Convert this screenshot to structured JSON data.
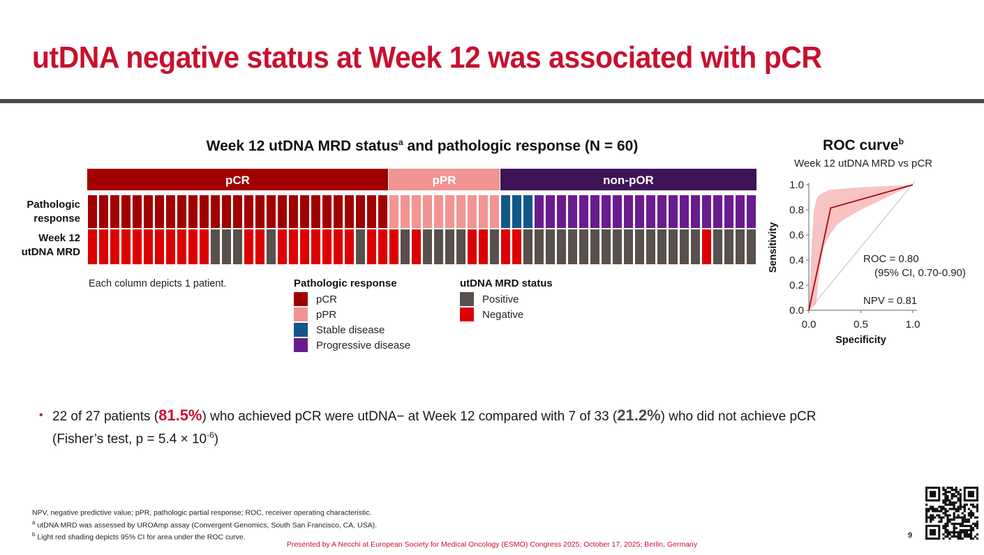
{
  "slide": {
    "title": "utDNA negative status at Week 12 was associated with pCR",
    "page_number": "9",
    "presenter": "Presented by A Necchi at European Society for Medical Oncology (ESMO) Congress 2025; October 17, 2025; Berlin, Germany"
  },
  "colors": {
    "accent": "#c8102e",
    "divider": "#4f4a48",
    "pCR": "#a00000",
    "pPR": "#f29492",
    "stable_disease": "#12578a",
    "progressive_disease": "#6a1b8e",
    "non_pOR_header": "#3f1457",
    "mrd_positive": "#57504c",
    "mrd_negative": "#dc0000",
    "roc_line": "#b0000f",
    "roc_ci": "#f6b9b9",
    "diagonal": "#cccccc"
  },
  "heatmap": {
    "title": "Week 12 utDNA MRD status",
    "title_sup": "a",
    "title_suffix": " and pathologic response (N = 60)",
    "row_labels": {
      "pathologic": [
        "Pathologic",
        "response"
      ],
      "mrd": [
        "Week 12",
        "utDNA MRD"
      ]
    },
    "groups": [
      {
        "label": "pCR",
        "count": 27,
        "color_key": "pCR"
      },
      {
        "label": "pPR",
        "count": 10,
        "color_key": "pPR"
      },
      {
        "label": "non-pOR",
        "count": 23,
        "color_key": "non_pOR_header"
      }
    ],
    "note": "Each column depicts 1 patient."
  },
  "chart_data": [
    {
      "type": "heatmap",
      "title": "Week 12 utDNA MRD status and pathologic response (N = 60)",
      "rows": [
        "Pathologic response",
        "Week 12 utDNA MRD"
      ],
      "columns": 60,
      "pathologic_response": [
        "pCR",
        "pCR",
        "pCR",
        "pCR",
        "pCR",
        "pCR",
        "pCR",
        "pCR",
        "pCR",
        "pCR",
        "pCR",
        "pCR",
        "pCR",
        "pCR",
        "pCR",
        "pCR",
        "pCR",
        "pCR",
        "pCR",
        "pCR",
        "pCR",
        "pCR",
        "pCR",
        "pCR",
        "pCR",
        "pCR",
        "pCR",
        "pPR",
        "pPR",
        "pPR",
        "pPR",
        "pPR",
        "pPR",
        "pPR",
        "pPR",
        "pPR",
        "pPR",
        "SD",
        "SD",
        "SD",
        "PD",
        "PD",
        "PD",
        "PD",
        "PD",
        "PD",
        "PD",
        "PD",
        "PD",
        "PD",
        "PD",
        "PD",
        "PD",
        "PD",
        "PD",
        "PD",
        "PD",
        "PD",
        "PD",
        "PD"
      ],
      "mrd_status": [
        "N",
        "N",
        "N",
        "N",
        "N",
        "N",
        "N",
        "N",
        "N",
        "N",
        "N",
        "P",
        "P",
        "P",
        "N",
        "N",
        "P",
        "N",
        "N",
        "N",
        "N",
        "N",
        "N",
        "N",
        "P",
        "N",
        "N",
        "N",
        "P",
        "N",
        "P",
        "P",
        "P",
        "P",
        "N",
        "N",
        "P",
        "N",
        "N",
        "P",
        "P",
        "P",
        "P",
        "P",
        "P",
        "P",
        "P",
        "P",
        "P",
        "P",
        "P",
        "P",
        "P",
        "P",
        "P",
        "N",
        "P",
        "P",
        "P",
        "P"
      ],
      "legend": {
        "pathologic": {
          "title": "Pathologic response",
          "items": [
            {
              "code": "pCR",
              "label": "pCR",
              "color_key": "pCR"
            },
            {
              "code": "pPR",
              "label": "pPR",
              "color_key": "pPR"
            },
            {
              "code": "SD",
              "label": "Stable disease",
              "color_key": "stable_disease"
            },
            {
              "code": "PD",
              "label": "Progressive disease",
              "color_key": "progressive_disease"
            }
          ]
        },
        "mrd": {
          "title": "utDNA MRD status",
          "items": [
            {
              "code": "P",
              "label": "Positive",
              "color_key": "mrd_positive"
            },
            {
              "code": "N",
              "label": "Negative",
              "color_key": "mrd_negative"
            }
          ]
        }
      }
    },
    {
      "type": "line",
      "title": "ROC curve",
      "title_sup": "b",
      "subtitle": "Week 12 utDNA MRD vs pCR",
      "xlabel": "Specificity",
      "ylabel": "Sensitivity",
      "xlim": [
        0,
        1
      ],
      "ylim": [
        0,
        1
      ],
      "xticks": [
        "0.0",
        "0.5",
        "1.0"
      ],
      "xtick_values": [
        0,
        0.5,
        1
      ],
      "yticks": [
        "0.0",
        "0.2",
        "0.4",
        "0.6",
        "0.8",
        "1.0"
      ],
      "ytick_values": [
        0,
        0.2,
        0.4,
        0.6,
        0.8,
        1.0
      ],
      "series": [
        {
          "name": "ROC",
          "x": [
            0,
            0.21,
            1
          ],
          "y": [
            0,
            0.815,
            1
          ]
        }
      ],
      "ci_upper": {
        "x": [
          0,
          0.03,
          0.05,
          0.08,
          0.12,
          0.2,
          0.5,
          1
        ],
        "y": [
          0,
          0.55,
          0.8,
          0.9,
          0.93,
          0.96,
          0.98,
          1
        ]
      },
      "ci_lower": {
        "x": [
          0,
          0.07,
          0.1,
          0.14,
          0.2,
          0.27,
          0.35,
          0.5,
          1
        ],
        "y": [
          0,
          0.05,
          0.3,
          0.5,
          0.6,
          0.68,
          0.73,
          0.8,
          1
        ]
      },
      "diagonal": {
        "x": [
          0,
          1
        ],
        "y": [
          0,
          1
        ]
      },
      "annotations": {
        "roc": "ROC = 0.80",
        "ci": "(95% CI, 0.70-0.90)",
        "npv": "NPV = 0.81"
      }
    }
  ],
  "bullet": {
    "part1": "22 of 27 patients (",
    "hl1": "81.5%",
    "part2": ") who achieved pCR were utDNA− at Week 12 compared with 7 of 33 (",
    "hl2": "21.2%",
    "part3": ") who did not achieve pCR",
    "part4": "(Fisher’s test, p = 5.4 × 10",
    "exp": "-6",
    "part5": ")"
  },
  "footnotes": [
    {
      "sup": "",
      "text": "NPV, negative predictive value; pPR, pathologic partial response; ROC, receiver operating characteristic."
    },
    {
      "sup": "a",
      "text": " utDNA MRD was assessed by UROAmp assay (Convergent Genomics, South San Francisco, CA, USA)."
    },
    {
      "sup": "b",
      "text": " Light red shading depicts 95% CI for area under the ROC curve."
    }
  ],
  "icons": {
    "qr_code": "qr-code-icon",
    "bullet": "bullet-dot-icon"
  }
}
